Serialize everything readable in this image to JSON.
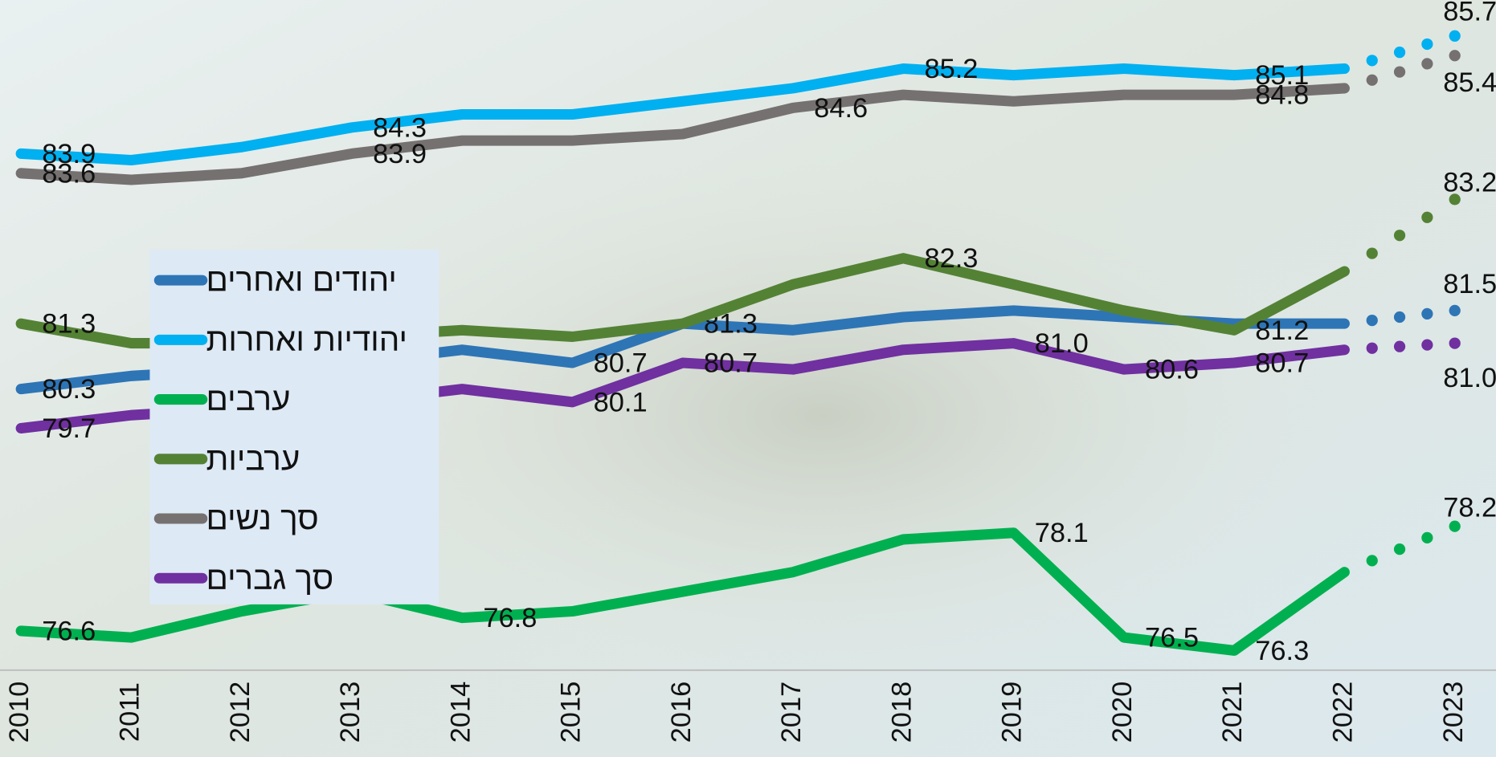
{
  "chart_data": {
    "type": "line",
    "categories": [
      "2010",
      "2011",
      "2012",
      "2013",
      "2014",
      "2015",
      "2016",
      "2017",
      "2018",
      "2019",
      "2020",
      "2021",
      "2022",
      "2023"
    ],
    "ylim": [
      76,
      86.25
    ],
    "dotted_last_segment": true,
    "series": [
      {
        "name": "יהודים ואחרים",
        "color": "#2e75b6",
        "values": [
          80.3,
          80.5,
          80.6,
          80.7,
          80.9,
          80.7,
          81.3,
          81.2,
          81.4,
          81.5,
          81.4,
          81.3,
          81.3,
          81.5
        ],
        "value_labels": [
          "80.3",
          null,
          null,
          null,
          null,
          "80.7",
          "81.3",
          null,
          null,
          null,
          null,
          null,
          null,
          "81.5"
        ]
      },
      {
        "name": "יהודיות ואחרות",
        "color": "#00b0f0",
        "values": [
          83.9,
          83.8,
          84.0,
          84.3,
          84.5,
          84.5,
          84.7,
          84.9,
          85.2,
          85.1,
          85.2,
          85.1,
          85.2,
          85.7
        ],
        "value_labels": [
          "83.9",
          null,
          null,
          "84.3",
          null,
          null,
          null,
          null,
          "85.2",
          null,
          null,
          "85.1",
          null,
          "85.7"
        ]
      },
      {
        "name": "ערבים",
        "color": "#00b050",
        "values": [
          76.6,
          76.5,
          76.9,
          77.2,
          76.8,
          76.9,
          77.2,
          77.5,
          78.0,
          78.1,
          76.5,
          76.3,
          77.5,
          78.2
        ],
        "value_labels": [
          "76.6",
          null,
          null,
          null,
          "76.8",
          null,
          null,
          null,
          null,
          "78.1",
          "76.5",
          "76.3",
          null,
          "78.2"
        ]
      },
      {
        "name": "ערביות",
        "color": "#548235",
        "values": [
          81.3,
          81.0,
          81.0,
          81.1,
          81.2,
          81.1,
          81.3,
          81.9,
          82.3,
          81.9,
          81.5,
          81.2,
          82.1,
          83.2
        ],
        "value_labels": [
          "81.3",
          null,
          null,
          null,
          null,
          null,
          null,
          null,
          "82.3",
          null,
          null,
          "81.2",
          null,
          "83.2"
        ]
      },
      {
        "name": "סך נשים",
        "color": "#767171",
        "values": [
          83.6,
          83.5,
          83.6,
          83.9,
          84.1,
          84.1,
          84.2,
          84.6,
          84.8,
          84.7,
          84.8,
          84.8,
          84.9,
          85.4
        ],
        "value_labels": [
          "83.6",
          null,
          null,
          "83.9",
          null,
          null,
          null,
          "84.6",
          null,
          null,
          null,
          "84.8",
          null,
          "85.4"
        ]
      },
      {
        "name": "סך גברים",
        "color": "#7030a0",
        "values": [
          79.7,
          79.9,
          80.0,
          80.1,
          80.3,
          80.1,
          80.7,
          80.6,
          80.9,
          81.0,
          80.6,
          80.7,
          80.9,
          81.0
        ],
        "value_labels": [
          "79.7",
          null,
          null,
          null,
          null,
          "80.1",
          "80.7",
          null,
          null,
          "81.0",
          "80.6",
          "80.7",
          null,
          "81.0"
        ]
      }
    ]
  }
}
